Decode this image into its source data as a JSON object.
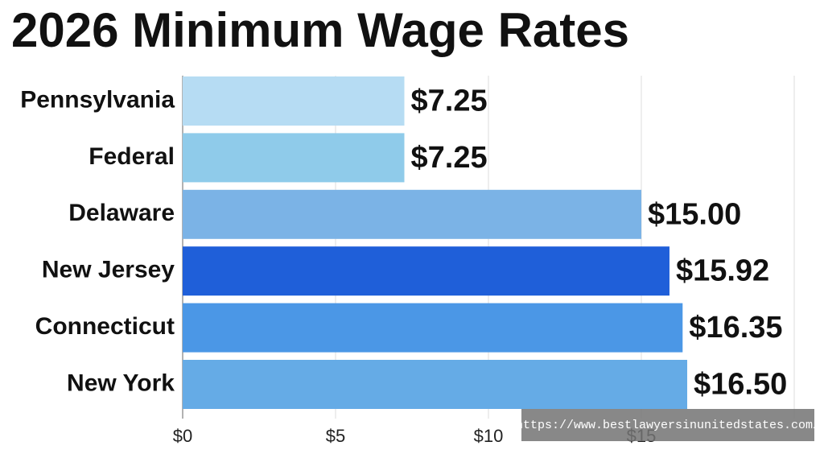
{
  "chart_data": {
    "type": "bar",
    "orientation": "horizontal",
    "title": "2026 Minimum Wage Rates",
    "categories": [
      "Pennsylvania",
      "Federal",
      "Delaware",
      "New Jersey",
      "Connecticut",
      "New York"
    ],
    "values": [
      7.25,
      7.25,
      15.0,
      15.92,
      16.35,
      16.5
    ],
    "value_labels": [
      "$7.25",
      "$7.25",
      "$15.00",
      "$15.92",
      "$16.35",
      "$16.50"
    ],
    "colors": [
      "#b6dcf3",
      "#8fcbea",
      "#7bb3e6",
      "#1f5fd9",
      "#4b97e6",
      "#65abe6"
    ],
    "xlim": [
      0,
      20
    ],
    "xticks": [
      {
        "value": 0,
        "label": "$0"
      },
      {
        "value": 5,
        "label": "$5"
      },
      {
        "value": 10,
        "label": "$10"
      },
      {
        "value": 15,
        "label": "$15"
      }
    ],
    "grid": true,
    "watermark": "https://www.bestlawyersinunitedstates.com/"
  }
}
